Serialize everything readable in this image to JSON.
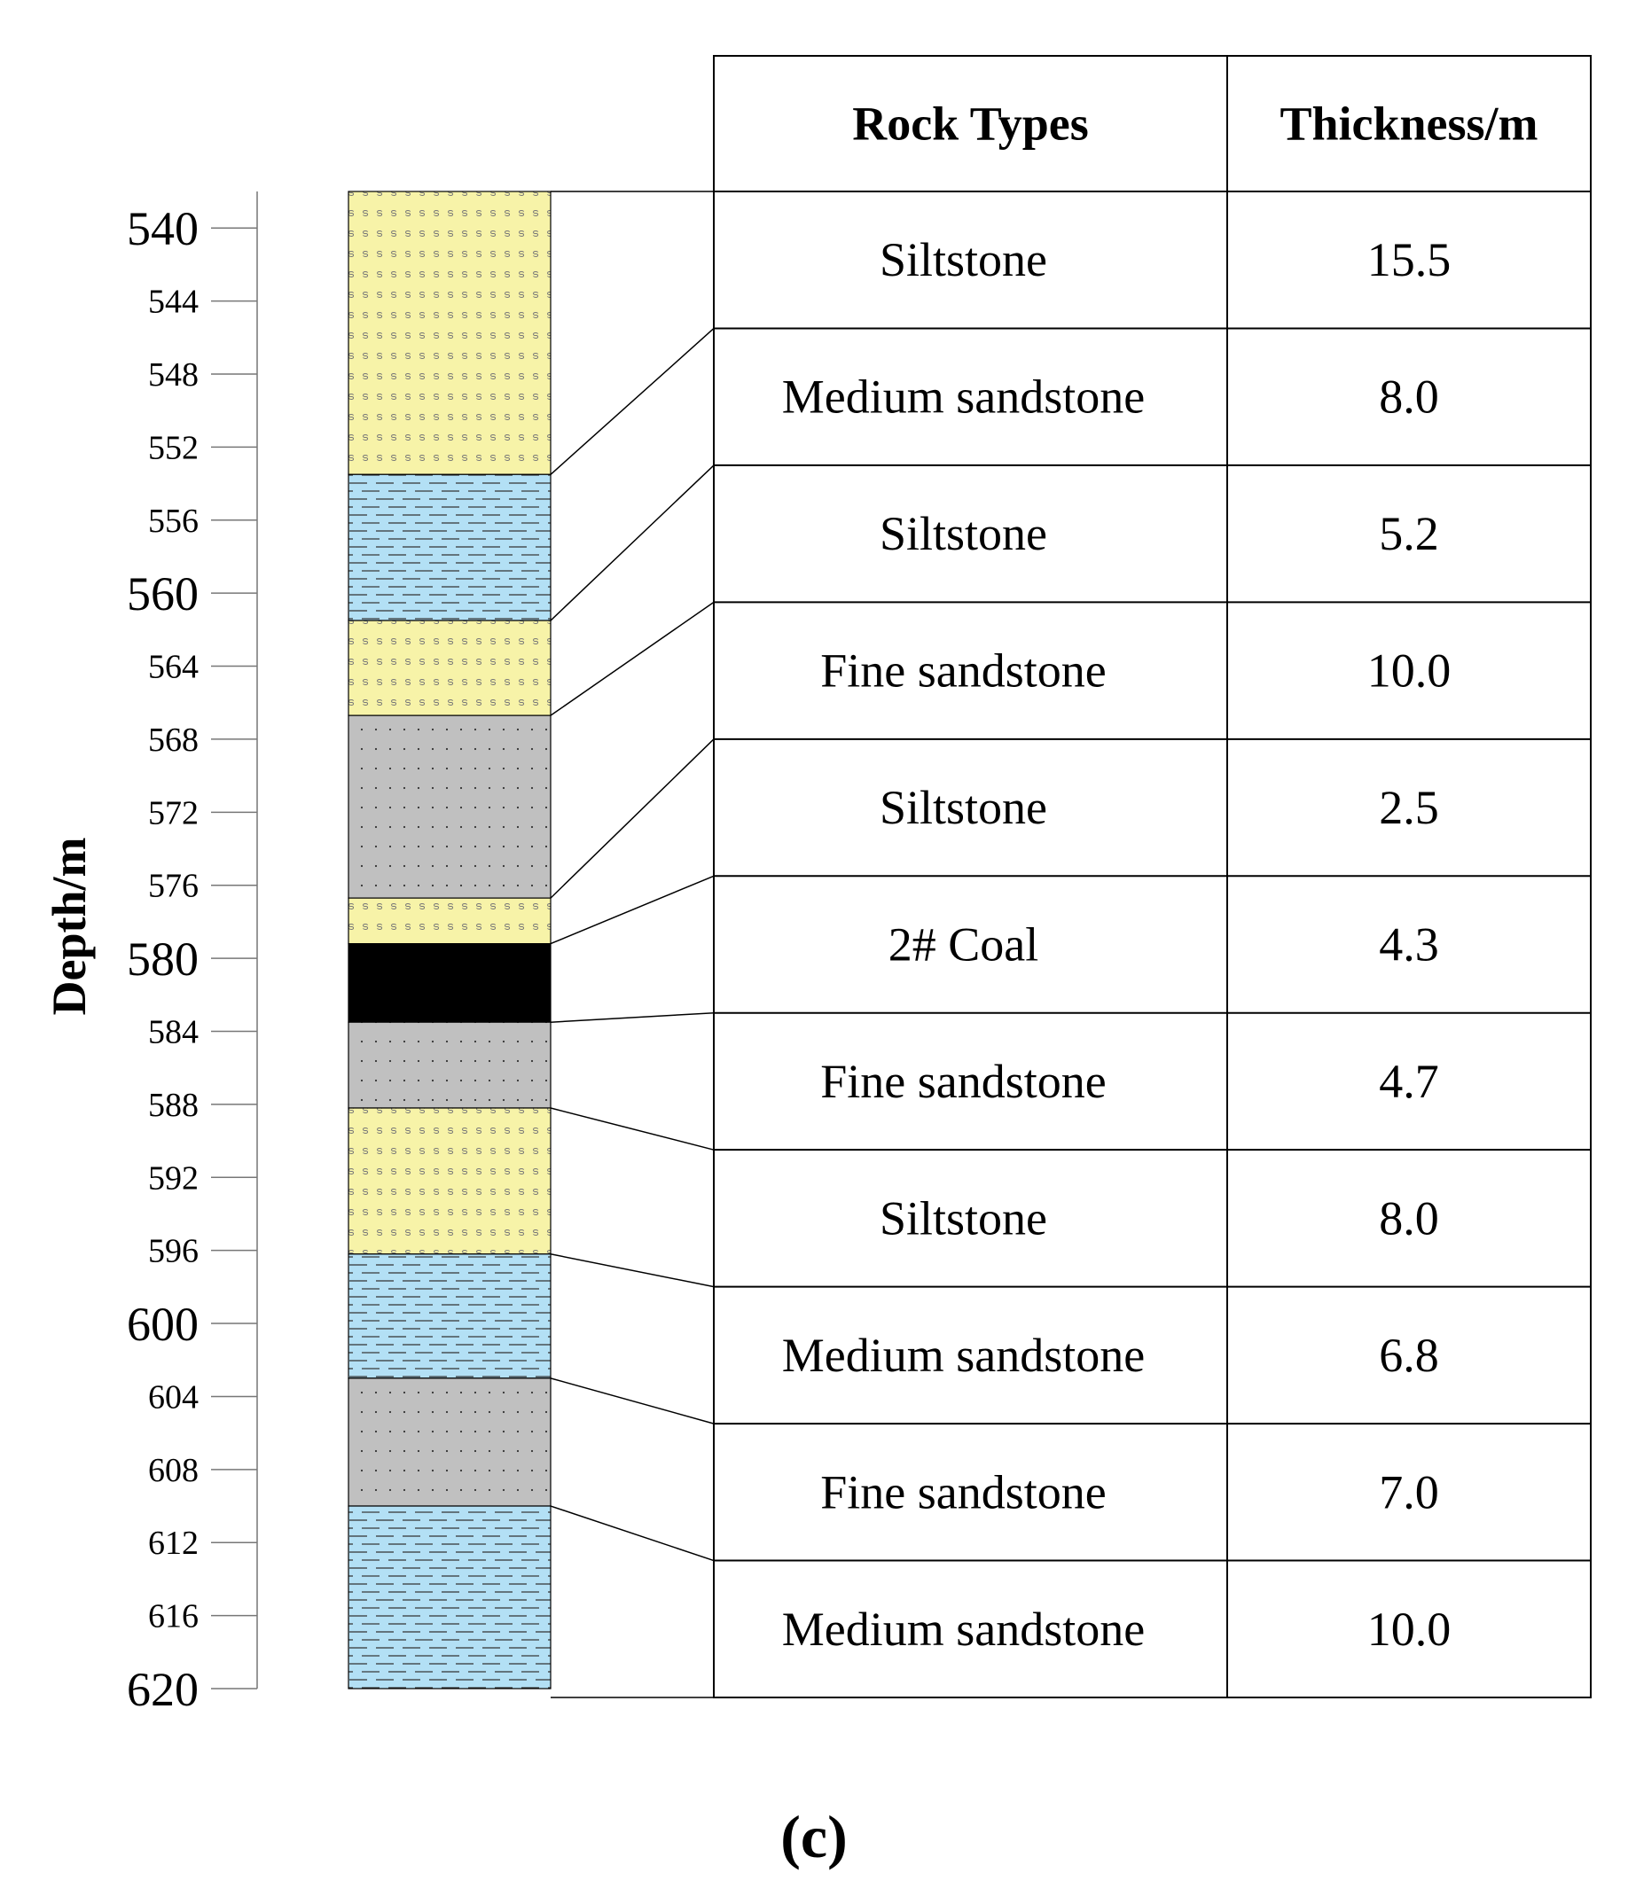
{
  "axis": {
    "title": "Depth/m",
    "min": 538,
    "max": 620,
    "tick_step": 4,
    "major_labels": [
      540,
      560,
      580,
      600,
      620
    ]
  },
  "table": {
    "headers": [
      "Rock  Types",
      "Thickness/m"
    ],
    "rows": [
      {
        "rock": "Siltstone",
        "thickness": "15.5"
      },
      {
        "rock": "Medium sandstone",
        "thickness": "8.0"
      },
      {
        "rock": "Siltstone",
        "thickness": "5.2"
      },
      {
        "rock": "Fine sandstone",
        "thickness": "10.0"
      },
      {
        "rock": "Siltstone",
        "thickness": "2.5"
      },
      {
        "rock": "2# Coal",
        "thickness": "4.3"
      },
      {
        "rock": "Fine sandstone",
        "thickness": "4.7"
      },
      {
        "rock": "Siltstone",
        "thickness": "8.0"
      },
      {
        "rock": "Medium sandstone",
        "thickness": "6.8"
      },
      {
        "rock": "Fine sandstone",
        "thickness": "7.0"
      },
      {
        "rock": "Medium sandstone",
        "thickness": "10.0"
      }
    ]
  },
  "column": {
    "layers": [
      {
        "rock": "siltstone",
        "top": 538.0,
        "bottom": 553.5
      },
      {
        "rock": "medium-sandstone",
        "top": 553.5,
        "bottom": 561.5
      },
      {
        "rock": "siltstone",
        "top": 561.5,
        "bottom": 566.7
      },
      {
        "rock": "fine-sandstone",
        "top": 566.7,
        "bottom": 576.7
      },
      {
        "rock": "siltstone",
        "top": 576.7,
        "bottom": 579.2
      },
      {
        "rock": "coal",
        "top": 579.2,
        "bottom": 583.5
      },
      {
        "rock": "fine-sandstone",
        "top": 583.5,
        "bottom": 588.2
      },
      {
        "rock": "siltstone",
        "top": 588.2,
        "bottom": 596.2
      },
      {
        "rock": "medium-sandstone",
        "top": 596.2,
        "bottom": 603.0
      },
      {
        "rock": "fine-sandstone",
        "top": 603.0,
        "bottom": 610.0
      },
      {
        "rock": "medium-sandstone",
        "top": 610.0,
        "bottom": 620.0
      }
    ],
    "colors": {
      "siltstone": "#f7f3a8",
      "medium-sandstone": "#b3e0f5",
      "fine-sandstone": "#c0c0c0",
      "coal": "#000000"
    }
  },
  "caption": "(c)"
}
